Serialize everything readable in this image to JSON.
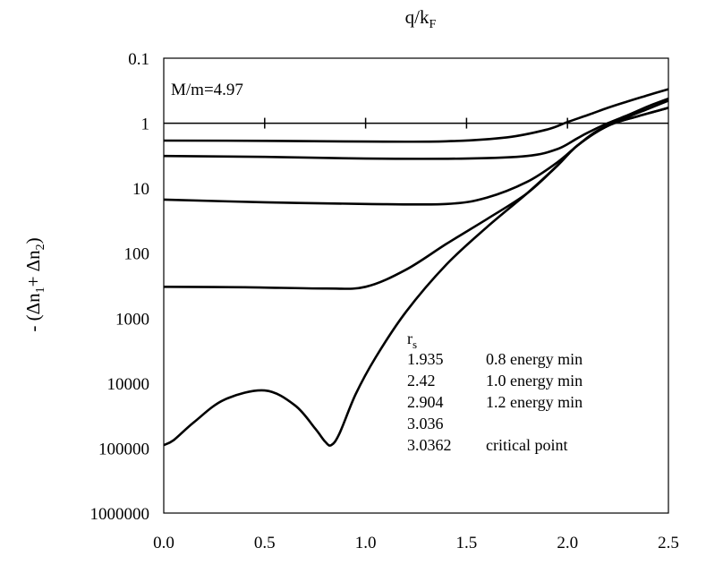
{
  "chart_data": {
    "type": "line",
    "title": "",
    "xlabel": "q/k_F",
    "ylabel": "- (Δn1+ Δn2)",
    "xlim": [
      0,
      2.5
    ],
    "ylim_log10": [
      -1,
      6
    ],
    "y_axis_reversed": true,
    "y_scale": "log",
    "x_ticks": [
      "0.0",
      "0.5",
      "1.0",
      "1.5",
      "2.0",
      "2.5"
    ],
    "y_ticks": [
      "0.1",
      "1",
      "10",
      "100",
      "1000",
      "10000",
      "100000",
      "1000000"
    ],
    "annotation": "M/m=4.97",
    "reference_line": {
      "y": 1,
      "tick_positions": [
        0.5,
        1.0,
        1.5,
        2.0
      ]
    },
    "legend": {
      "header": "r",
      "header_sub": "s",
      "entries": [
        {
          "rs": "1.935",
          "note": "0.8 energy min"
        },
        {
          "rs": "2.42",
          "note": "1.0  energy min"
        },
        {
          "rs": "2.904",
          "note": "1.2  energy min"
        },
        {
          "rs": "3.036",
          "note": ""
        },
        {
          "rs": "3.0362",
          "note": "critical point"
        }
      ]
    },
    "series": [
      {
        "name": "1.935",
        "x": [
          0.0,
          0.5,
          1.0,
          1.4,
          1.7,
          1.9,
          2.0,
          2.1,
          2.2,
          2.3,
          2.4,
          2.5
        ],
        "y": [
          1.85,
          1.87,
          1.92,
          1.9,
          1.65,
          1.25,
          0.96,
          0.75,
          0.58,
          0.46,
          0.37,
          0.3
        ]
      },
      {
        "name": "2.42",
        "x": [
          0.0,
          0.5,
          1.0,
          1.5,
          1.8,
          1.95,
          2.05,
          2.1,
          2.2,
          2.3,
          2.4,
          2.5
        ],
        "y": [
          3.2,
          3.3,
          3.5,
          3.5,
          3.2,
          2.5,
          1.7,
          1.4,
          1.0,
          0.75,
          0.55,
          0.42
        ]
      },
      {
        "name": "2.904",
        "x": [
          0.0,
          0.5,
          1.0,
          1.4,
          1.6,
          1.8,
          1.95,
          2.05,
          2.15,
          2.3,
          2.4,
          2.5
        ],
        "y": [
          15,
          16.5,
          17.5,
          17.5,
          14,
          8,
          4,
          2.2,
          1.3,
          0.8,
          0.6,
          0.45
        ]
      },
      {
        "name": "3.036",
        "x": [
          0.0,
          0.4,
          0.8,
          1.0,
          1.2,
          1.4,
          1.6,
          1.8,
          1.95,
          2.05,
          2.2,
          2.35,
          2.5
        ],
        "y": [
          330,
          335,
          350,
          330,
          180,
          72,
          30,
          12,
          4.5,
          2.2,
          1.1,
          0.78,
          0.58
        ]
      },
      {
        "name": "3.0362",
        "x": [
          0.0,
          0.05,
          0.15,
          0.3,
          0.5,
          0.65,
          0.75,
          0.8,
          0.83,
          0.87,
          0.95,
          1.05,
          1.2,
          1.4,
          1.6,
          1.8,
          1.95,
          2.05,
          2.2,
          2.35,
          2.5
        ],
        "y": [
          90000,
          75000,
          40000,
          18000,
          13000,
          22000,
          50000,
          80000,
          90000,
          60000,
          15000,
          4000,
          800,
          150,
          40,
          12,
          4.5,
          2.2,
          1.1,
          0.78,
          0.58
        ]
      }
    ]
  }
}
